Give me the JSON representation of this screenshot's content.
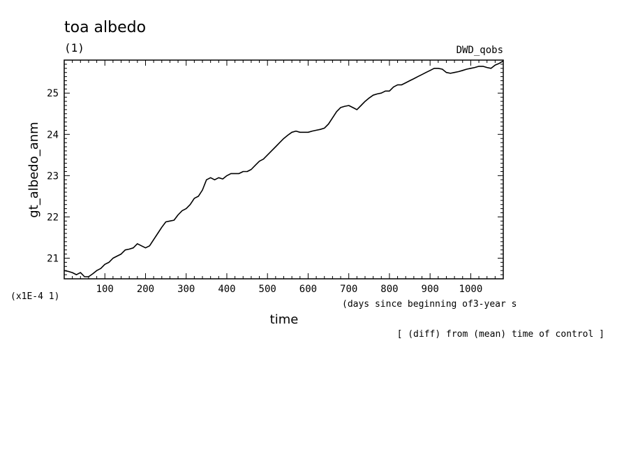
{
  "chart_data": {
    "type": "line",
    "title": "toa albedo",
    "subtitle": "(1)",
    "run_label": "DWD_qobs",
    "xlabel": "time",
    "xunit": "(days since beginning of3-year s",
    "ylabel": "gt_albedo_anm",
    "yscale_note": "(x1E-4 1)",
    "footer_note": "[ (diff) from (mean) time of control ]",
    "xlim": [
      0,
      1080
    ],
    "ylim": [
      20.5,
      25.8
    ],
    "xticks": [
      100,
      200,
      300,
      400,
      500,
      600,
      700,
      800,
      900,
      1000
    ],
    "xtick_labels": [
      "100",
      "200",
      "300",
      "400",
      "500",
      "600",
      "700",
      "800",
      "900",
      "1000"
    ],
    "yticks": [
      21,
      22,
      23,
      24,
      25
    ],
    "ytick_labels": [
      "21",
      "22",
      "23",
      "24",
      "25"
    ],
    "grid": false,
    "series": [
      {
        "color": "#000000",
        "x": [
          0,
          10,
          20,
          30,
          40,
          50,
          60,
          70,
          80,
          90,
          100,
          110,
          120,
          130,
          140,
          150,
          160,
          170,
          180,
          190,
          200,
          210,
          220,
          230,
          240,
          250,
          260,
          270,
          280,
          290,
          300,
          310,
          320,
          330,
          340,
          350,
          360,
          370,
          380,
          390,
          400,
          410,
          420,
          430,
          440,
          450,
          460,
          470,
          480,
          490,
          500,
          510,
          520,
          530,
          540,
          550,
          560,
          570,
          580,
          590,
          600,
          610,
          620,
          630,
          640,
          650,
          660,
          670,
          680,
          690,
          700,
          710,
          720,
          730,
          740,
          750,
          760,
          770,
          780,
          790,
          800,
          810,
          820,
          830,
          840,
          850,
          860,
          870,
          880,
          890,
          900,
          910,
          920,
          930,
          940,
          950,
          960,
          970,
          980,
          990,
          1000,
          1010,
          1020,
          1030,
          1040,
          1050,
          1060,
          1070,
          1080
        ],
        "y": [
          20.7,
          20.68,
          20.65,
          20.6,
          20.65,
          20.55,
          20.55,
          20.62,
          20.7,
          20.75,
          20.85,
          20.9,
          21.0,
          21.05,
          21.1,
          21.2,
          21.22,
          21.25,
          21.35,
          21.3,
          21.25,
          21.3,
          21.45,
          21.6,
          21.75,
          21.88,
          21.9,
          21.92,
          22.05,
          22.15,
          22.2,
          22.3,
          22.45,
          22.5,
          22.65,
          22.9,
          22.95,
          22.9,
          22.95,
          22.92,
          23.0,
          23.05,
          23.05,
          23.05,
          23.1,
          23.1,
          23.15,
          23.25,
          23.35,
          23.4,
          23.5,
          23.6,
          23.7,
          23.8,
          23.9,
          23.98,
          24.05,
          24.08,
          24.05,
          24.05,
          24.05,
          24.08,
          24.1,
          24.12,
          24.15,
          24.25,
          24.4,
          24.55,
          24.65,
          24.68,
          24.7,
          24.65,
          24.6,
          24.7,
          24.8,
          24.88,
          24.95,
          24.98,
          25.0,
          25.05,
          25.05,
          25.15,
          25.2,
          25.2,
          25.25,
          25.3,
          25.35,
          25.4,
          25.45,
          25.5,
          25.55,
          25.6,
          25.6,
          25.58,
          25.5,
          25.48,
          25.5,
          25.52,
          25.55,
          25.58,
          25.6,
          25.62,
          25.65,
          25.65,
          25.62,
          25.6,
          25.68,
          25.72,
          25.78
        ]
      }
    ]
  }
}
